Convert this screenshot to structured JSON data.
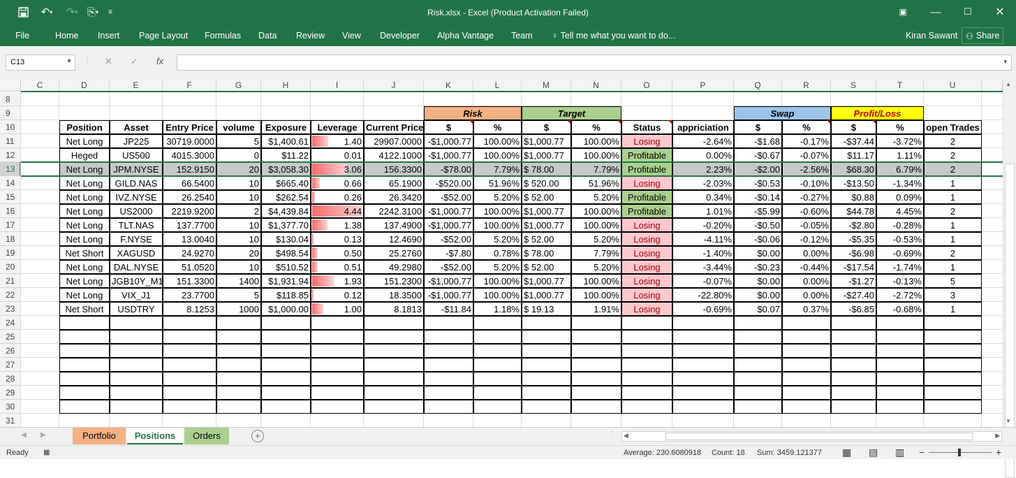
{
  "app": {
    "title": "Risk.xlsx - Excel (Product Activation Failed)",
    "user": "Kiran Sawant",
    "share_label": "Share"
  },
  "ribbon": {
    "tabs": [
      "File",
      "Home",
      "Insert",
      "Page Layout",
      "Formulas",
      "Data",
      "Review",
      "View",
      "Developer",
      "Alpha Vantage",
      "Team"
    ],
    "tell_me": "Tell me what you want to do..."
  },
  "formula_bar": {
    "name_box": "C13",
    "formula": ""
  },
  "columns": [
    "C",
    "D",
    "E",
    "F",
    "G",
    "H",
    "I",
    "J",
    "K",
    "L",
    "M",
    "N",
    "O",
    "P",
    "Q",
    "R",
    "S",
    "T",
    "U"
  ],
  "row_numbers": [
    "8",
    "9",
    "10",
    "11",
    "12",
    "13",
    "14",
    "15",
    "16",
    "17",
    "18",
    "19",
    "20",
    "21",
    "22",
    "23",
    "24",
    "25",
    "26",
    "27",
    "28",
    "29",
    "30",
    "31"
  ],
  "group_headers": {
    "risk": "Risk",
    "target": "Target",
    "swap": "Swap",
    "pl": "Profit/Loss"
  },
  "headers": [
    "Position",
    "Asset",
    "Entry Price",
    "volume",
    "Exposure",
    "Leverage",
    "Current Price",
    "$",
    "%",
    "$",
    "%",
    "Status",
    "appriciation",
    "$",
    "%",
    "$",
    "%",
    "open Trades"
  ],
  "rows": [
    [
      "Net Long",
      "JP225",
      "30719.0000",
      "5",
      "$1,400.61",
      "1.40",
      "29907.0000",
      "-$1,000.77",
      "100.00%",
      "$1,000.77",
      "100.00%",
      "Losing",
      "-2.64%",
      "-$1.68",
      "-0.17%",
      "-$37.44",
      "-3.72%",
      "2"
    ],
    [
      "Heged",
      "US500",
      "4015.3000",
      "0",
      "$11.22",
      "0.01",
      "4122.1000",
      "-$1,000.77",
      "100.00%",
      "$1,000.77",
      "100.00%",
      "Profitable",
      "0.00%",
      "-$0.67",
      "-0.07%",
      "$11.17",
      "1.11%",
      "2"
    ],
    [
      "Net Long",
      "JPM.NYSE",
      "152.9150",
      "20",
      "$3,058.30",
      "3.06",
      "156.3300",
      "-$78.00",
      "7.79%",
      "$ 78.00",
      "7.79%",
      "Profitable",
      "2.23%",
      "-$2.00",
      "-2.56%",
      "$68.30",
      "6.79%",
      "2"
    ],
    [
      "Net Long",
      "GILD.NAS",
      "66.5400",
      "10",
      "$665.40",
      "0.66",
      "65.1900",
      "-$520.00",
      "51.96%",
      "$ 520.00",
      "51.96%",
      "Losing",
      "-2.03%",
      "-$0.53",
      "-0.10%",
      "-$13.50",
      "-1.34%",
      "1"
    ],
    [
      "Net Long",
      "IVZ.NYSE",
      "26.2540",
      "10",
      "$262.54",
      "0.26",
      "26.3420",
      "-$52.00",
      "5.20%",
      "$ 52.00",
      "5.20%",
      "Profitable",
      "0.34%",
      "-$0.14",
      "-0.27%",
      "$0.88",
      "0.09%",
      "1"
    ],
    [
      "Net Long",
      "US2000",
      "2219.9200",
      "2",
      "$4,439.84",
      "4.44",
      "2242.3100",
      "-$1,000.77",
      "100.00%",
      "$1,000.77",
      "100.00%",
      "Profitable",
      "1.01%",
      "-$5.99",
      "-0.60%",
      "$44.78",
      "4.45%",
      "2"
    ],
    [
      "Net Long",
      "TLT.NAS",
      "137.7700",
      "10",
      "$1,377.70",
      "1.38",
      "137.4900",
      "-$1,000.77",
      "100.00%",
      "$1,000.77",
      "100.00%",
      "Losing",
      "-0.20%",
      "-$0.50",
      "-0.05%",
      "-$2.80",
      "-0.28%",
      "1"
    ],
    [
      "Net Long",
      "F.NYSE",
      "13.0040",
      "10",
      "$130.04",
      "0.13",
      "12.4690",
      "-$52.00",
      "5.20%",
      "$ 52.00",
      "5.20%",
      "Losing",
      "-4.11%",
      "-$0.06",
      "-0.12%",
      "-$5.35",
      "-0.53%",
      "1"
    ],
    [
      "Net Short",
      "XAGUSD",
      "24.9270",
      "20",
      "$498.54",
      "0.50",
      "25.2760",
      "-$7.80",
      "0.78%",
      "$ 78.00",
      "7.79%",
      "Losing",
      "-1.40%",
      "$0.00",
      "0.00%",
      "-$6.98",
      "-0.69%",
      "2"
    ],
    [
      "Net Long",
      "DAL.NYSE",
      "51.0520",
      "10",
      "$510.52",
      "0.51",
      "49.2980",
      "-$52.00",
      "5.20%",
      "$ 52.00",
      "5.20%",
      "Losing",
      "-3.44%",
      "-$0.23",
      "-0.44%",
      "-$17.54",
      "-1.74%",
      "1"
    ],
    [
      "Net Long",
      "JGB10Y_M1",
      "151.3300",
      "1400",
      "$1,931.94",
      "1.93",
      "151.2300",
      "-$1,000.77",
      "100.00%",
      "$1,000.77",
      "100.00%",
      "Losing",
      "-0.07%",
      "$0.00",
      "0.00%",
      "-$1.27",
      "-0.13%",
      "5"
    ],
    [
      "Net Long",
      "VIX_J1",
      "23.7700",
      "5",
      "$118.85",
      "0.12",
      "18.3500",
      "-$1,000.77",
      "100.00%",
      "$1,000.77",
      "100.00%",
      "Losing",
      "-22.80%",
      "$0.00",
      "0.00%",
      "-$27.40",
      "-2.72%",
      "3"
    ],
    [
      "Net Short",
      "USDTRY",
      "8.1253",
      "1000",
      "$1,000.00",
      "1.00",
      "8.1813",
      "-$11.84",
      "1.18%",
      "$ 19.13",
      "1.91%",
      "Losing",
      "-0.69%",
      "$0.07",
      "0.37%",
      "-$6.85",
      "-0.68%",
      "1"
    ]
  ],
  "selected_row_index": 2,
  "sheet_tabs": [
    {
      "label": "Portfolio",
      "color": "#f4b183"
    },
    {
      "label": "Positions",
      "color": "#ffffff",
      "active": true
    },
    {
      "label": "Orders",
      "color": "#a9d08e"
    }
  ],
  "status": {
    "ready": "Ready",
    "average": "Average: 230.6080918",
    "count": "Count: 18",
    "sum": "Sum: 3459.121377"
  },
  "colors": {
    "excel_green": "#217346",
    "risk": "#f4b183",
    "target": "#a9d08e",
    "swap": "#9dc3e6",
    "pl": "#ffff00",
    "losing_bg": "#ffc7ce",
    "losing_text": "#9c0006",
    "profitable_bg": "#a9d08e",
    "databar": "#f8696b"
  }
}
